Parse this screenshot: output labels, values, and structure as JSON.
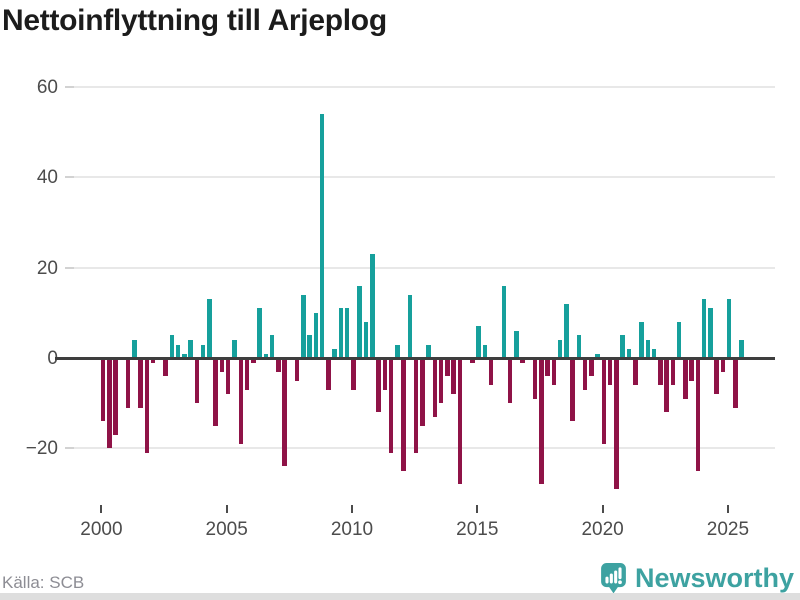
{
  "title": "Nettoinflyttning till Arjeplog",
  "footer": {
    "source": "Källa: SCB",
    "logo_text": "Newsworthy"
  },
  "colors": {
    "background": "#ffffff",
    "positive": "#16a09c",
    "negative": "#8f1347",
    "axis_line": "#3e3e3e",
    "gridline": "#e8e8e8",
    "tick_label": "#4c4c4c",
    "title": "#1c1c1c",
    "source_text": "#8d8d94",
    "logo": "#3da2a1",
    "bottom_bar": "#dedede"
  },
  "y_axis": {
    "ticks": [
      {
        "label": "60",
        "value": 60
      },
      {
        "label": "40",
        "value": 40
      },
      {
        "label": "20",
        "value": 20
      },
      {
        "label": "0",
        "value": 0
      },
      {
        "label": "−20",
        "value": -20
      }
    ]
  },
  "x_axis": {
    "ticks": [
      {
        "label": "2000",
        "year": 2000
      },
      {
        "label": "2005",
        "year": 2005
      },
      {
        "label": "2010",
        "year": 2010
      },
      {
        "label": "2015",
        "year": 2015
      },
      {
        "label": "2020",
        "year": 2020
      },
      {
        "label": "2025",
        "year": 2025
      }
    ]
  },
  "chart_data": {
    "type": "bar",
    "title": "Nettoinflyttning till Arjeplog",
    "frequency": "quarterly",
    "start": "2000 Q1",
    "end": "2025 Q3",
    "ylim": [
      -30,
      60
    ],
    "grid": "horizontal",
    "legend": "none",
    "positive_color": "#16a09c",
    "negative_color": "#8f1347",
    "series_by_year": [
      {
        "year": 2000,
        "values": [
          -14,
          -20,
          -17,
          0
        ]
      },
      {
        "year": 2001,
        "values": [
          -11,
          4,
          -11,
          -21
        ]
      },
      {
        "year": 2002,
        "values": [
          -1,
          0,
          -4,
          5
        ]
      },
      {
        "year": 2003,
        "values": [
          3,
          1,
          4,
          -10
        ]
      },
      {
        "year": 2004,
        "values": [
          3,
          13,
          -15,
          -3
        ]
      },
      {
        "year": 2005,
        "values": [
          -8,
          4,
          -19,
          -7
        ]
      },
      {
        "year": 2006,
        "values": [
          -1,
          11,
          1,
          5
        ]
      },
      {
        "year": 2007,
        "values": [
          -3,
          -24,
          0,
          -5
        ]
      },
      {
        "year": 2008,
        "values": [
          14,
          5,
          10,
          54
        ]
      },
      {
        "year": 2009,
        "values": [
          -7,
          2,
          11,
          11
        ]
      },
      {
        "year": 2010,
        "values": [
          -7,
          16,
          8,
          23
        ]
      },
      {
        "year": 2011,
        "values": [
          -12,
          -7,
          -21,
          3
        ]
      },
      {
        "year": 2012,
        "values": [
          -25,
          14,
          -21,
          -15
        ]
      },
      {
        "year": 2013,
        "values": [
          3,
          -13,
          -10,
          -4
        ]
      },
      {
        "year": 2014,
        "values": [
          -8,
          -28,
          0,
          -1
        ]
      },
      {
        "year": 2015,
        "values": [
          7,
          3,
          -6,
          0
        ]
      },
      {
        "year": 2016,
        "values": [
          16,
          -10,
          6,
          -1
        ]
      },
      {
        "year": 2017,
        "values": [
          0,
          -9,
          -28,
          -4
        ]
      },
      {
        "year": 2018,
        "values": [
          -6,
          4,
          12,
          -14
        ]
      },
      {
        "year": 2019,
        "values": [
          5,
          -7,
          -4,
          1
        ]
      },
      {
        "year": 2020,
        "values": [
          -19,
          -6,
          -29,
          5
        ]
      },
      {
        "year": 2021,
        "values": [
          2,
          -6,
          8,
          4
        ]
      },
      {
        "year": 2022,
        "values": [
          2,
          -6,
          -12,
          -6
        ]
      },
      {
        "year": 2023,
        "values": [
          8,
          -9,
          -5,
          -25
        ]
      },
      {
        "year": 2024,
        "values": [
          13,
          11,
          -8,
          -3
        ]
      },
      {
        "year": 2025,
        "values": [
          13,
          -11,
          4
        ]
      }
    ]
  }
}
